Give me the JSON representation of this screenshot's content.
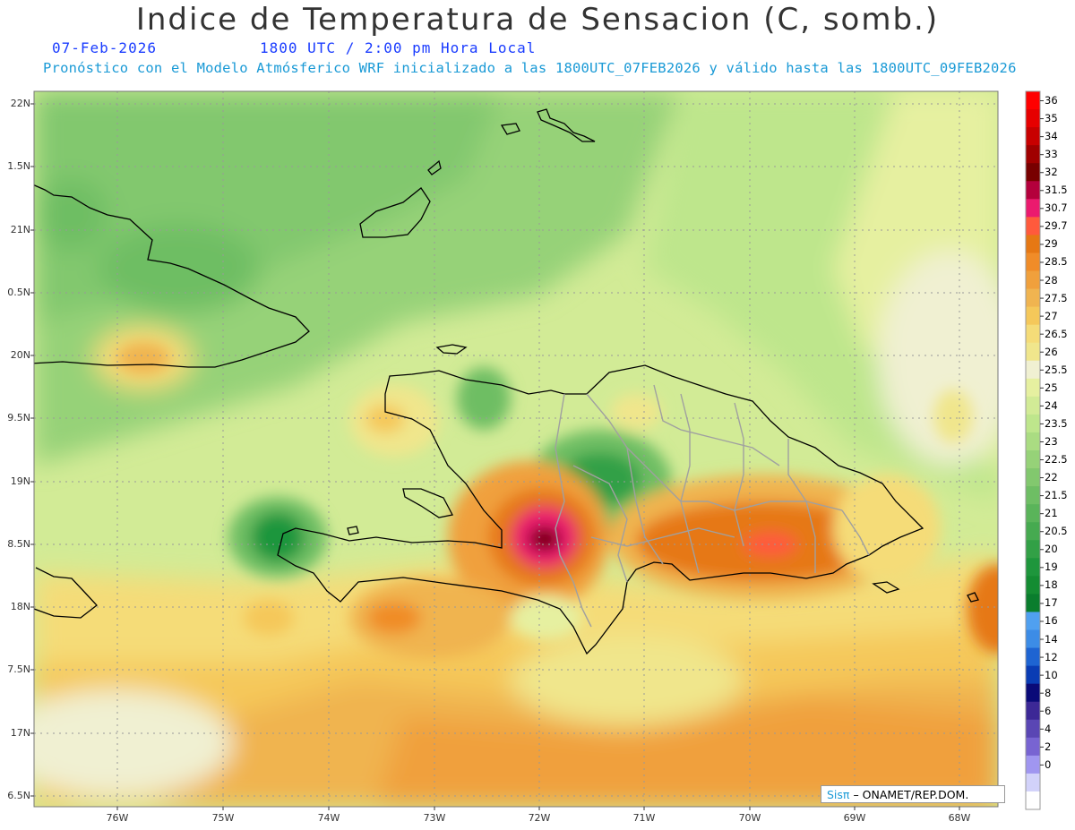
{
  "header": {
    "title": "Indice de Temperatura de Sensacion (C, somb.)",
    "date": "07-Feb-2026",
    "time": "1800 UTC / 2:00 pm Hora Local",
    "model_line": "Pronóstico con el Modelo Atmósferico WRF inicializado a las 1800UTC_07FEB2026 y válido hasta las  1800UTC_09FEB2026"
  },
  "axes": {
    "lat_labels": [
      "22N",
      "1.5N",
      "21N",
      "0.5N",
      "20N",
      "9.5N",
      "19N",
      "8.5N",
      "18N",
      "7.5N",
      "17N",
      "6.5N"
    ],
    "lon_labels": [
      "76W",
      "75W",
      "74W",
      "73W",
      "72W",
      "71W",
      "70W",
      "69W",
      "68W"
    ]
  },
  "colorbar": {
    "labels": [
      "36",
      "35",
      "34",
      "33",
      "32",
      "31.5",
      "30.7",
      "29.7",
      "29",
      "28.5",
      "28",
      "27.5",
      "27",
      "26.5",
      "26",
      "25.5",
      "25",
      "24",
      "23.5",
      "23",
      "22.5",
      "22",
      "21.5",
      "21",
      "20.5",
      "20",
      "19",
      "18",
      "17",
      "16",
      "14",
      "12",
      "10",
      "8",
      "6",
      "4",
      "2",
      "0"
    ],
    "colors": [
      "#ff0000",
      "#e60000",
      "#c80000",
      "#a00000",
      "#780000",
      "#b4003c",
      "#eb1a6e",
      "#ff5a3c",
      "#e67814",
      "#f08c28",
      "#f0a03c",
      "#f0b450",
      "#f5c85a",
      "#f5dc78",
      "#f0e68c",
      "#f0f0d2",
      "#e6f0a0",
      "#d2eb96",
      "#bee68c",
      "#aadc82",
      "#96d278",
      "#82c86e",
      "#6ebe64",
      "#5ab45a",
      "#46aa50",
      "#32a046",
      "#1e963c",
      "#148c32",
      "#0a7d2d",
      "#50a0f0",
      "#3c8ce6",
      "#1e64d2",
      "#0a3cb4",
      "#0a0a78",
      "#3c2896",
      "#5a46b4",
      "#7864d2",
      "#a096f0",
      "#d2d2fa",
      "#ffffff"
    ]
  },
  "credit": {
    "brand": "Sisπ",
    "org": "– ONAMET/REP.DOM."
  }
}
